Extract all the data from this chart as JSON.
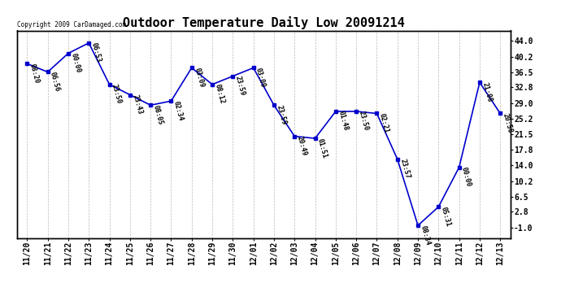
{
  "title": "Outdoor Temperature Daily Low 20091214",
  "copyright": "Copyright 2009 CarDamaged.com",
  "dates": [
    "11/20",
    "11/21",
    "11/22",
    "11/23",
    "11/24",
    "11/25",
    "11/26",
    "11/27",
    "11/28",
    "11/29",
    "11/30",
    "12/01",
    "12/02",
    "12/03",
    "12/04",
    "12/05",
    "12/06",
    "12/07",
    "12/08",
    "12/09",
    "12/10",
    "12/11",
    "12/12",
    "12/13"
  ],
  "values": [
    38.5,
    36.5,
    41.0,
    43.5,
    33.5,
    31.0,
    28.5,
    29.5,
    37.5,
    33.5,
    35.5,
    37.5,
    28.5,
    21.0,
    20.5,
    27.0,
    27.0,
    26.5,
    15.5,
    -0.5,
    4.0,
    13.5,
    34.0,
    26.5
  ],
  "time_labels": [
    "08:20",
    "06:56",
    "00:00",
    "06:53",
    "23:50",
    "23:43",
    "08:05",
    "02:34",
    "03:09",
    "08:12",
    "23:59",
    "03:09",
    "23:59",
    "20:49",
    "01:51",
    "01:48",
    "23:50",
    "02:21",
    "23:57",
    "08:34",
    "05:31",
    "00:00",
    "21:08",
    "20:58"
  ],
  "line_color": "#0000CC",
  "marker_color": "#0000CC",
  "background_color": "#ffffff",
  "grid_color": "#bbbbbb",
  "yticks_right": [
    44.0,
    40.2,
    36.5,
    32.8,
    29.0,
    25.2,
    21.5,
    17.8,
    14.0,
    10.2,
    6.5,
    2.8,
    -1.0
  ],
  "ylim": [
    -3.5,
    46.5
  ],
  "title_fontsize": 11,
  "tick_fontsize": 7,
  "annotation_fontsize": 6
}
